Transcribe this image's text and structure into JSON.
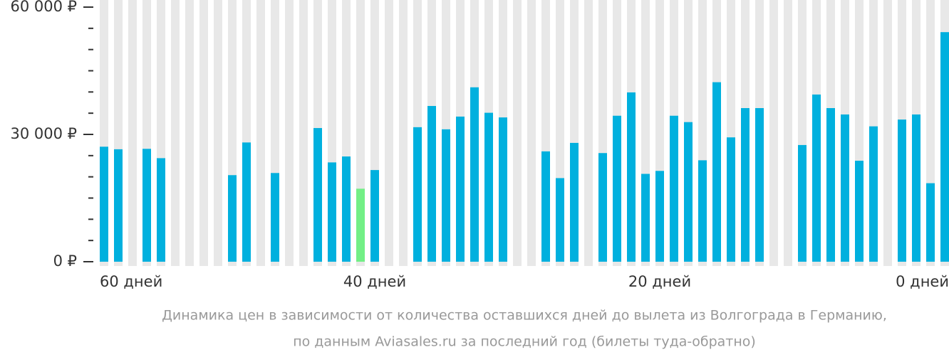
{
  "chart_data": {
    "type": "bar",
    "categories": [
      "60 дней",
      null,
      null,
      null,
      null,
      null,
      null,
      null,
      null,
      null,
      null,
      null,
      null,
      null,
      null,
      null,
      null,
      null,
      null,
      "40 дней",
      null,
      null,
      null,
      null,
      null,
      null,
      null,
      null,
      null,
      null,
      null,
      null,
      null,
      null,
      null,
      null,
      null,
      null,
      null,
      "20 дней",
      null,
      null,
      null,
      null,
      null,
      null,
      null,
      null,
      null,
      null,
      null,
      null,
      null,
      null,
      null,
      null,
      null,
      null,
      null,
      "0 дней"
    ],
    "values": [
      27100,
      26500,
      null,
      26600,
      24400,
      null,
      null,
      null,
      null,
      20400,
      28100,
      null,
      20900,
      null,
      null,
      31500,
      23400,
      24800,
      17200,
      21600,
      null,
      null,
      31700,
      36700,
      31200,
      34200,
      41100,
      35100,
      34000,
      null,
      null,
      26000,
      19700,
      28000,
      null,
      25600,
      34400,
      39900,
      20700,
      21400,
      34400,
      32900,
      23900,
      42300,
      29300,
      36200,
      36200,
      null,
      null,
      27500,
      39400,
      36200,
      34700,
      23800,
      31900,
      null,
      33500,
      34700,
      18500,
      54100
    ],
    "color": "#00b0de",
    "highlight": {
      "index": 18,
      "color": "#72ef86"
    },
    "background_color": "#e8e8e8",
    "ylim": [
      0,
      60000
    ],
    "yticks": [
      {
        "value": 0,
        "label": "0 ₽"
      },
      {
        "value": 30000,
        "label": "30 000 ₽"
      },
      {
        "value": 60000,
        "label": "60 000 ₽"
      }
    ],
    "minor_yticks": [
      5000,
      10000,
      15000,
      20000,
      25000,
      35000,
      40000,
      45000,
      50000,
      55000
    ],
    "caption": [
      "Динамика цен в зависимости от количества оставшихся дней до вылета из Волгограда в Германию,",
      "по данным Aviasales.ru за последний год (билеты туда-обратно)"
    ]
  }
}
